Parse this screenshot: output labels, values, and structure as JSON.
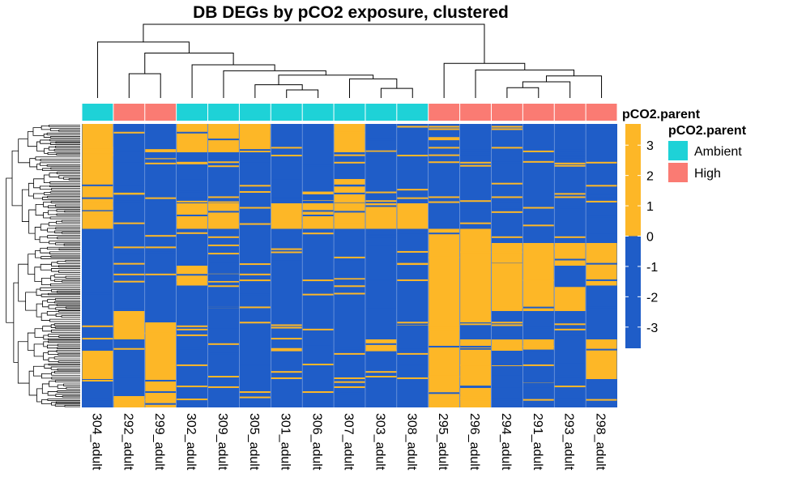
{
  "chart_data": {
    "type": "heatmap",
    "title": "DB DEGs by pCO2 exposure, clustered",
    "columns": [
      "304_adult",
      "292_adult",
      "299_adult",
      "302_adult",
      "309_adult",
      "305_adult",
      "301_adult",
      "306_adult",
      "307_adult",
      "303_adult",
      "308_adult",
      "295_adult",
      "296_adult",
      "294_adult",
      "291_adult",
      "293_adult",
      "298_adult"
    ],
    "annotation": {
      "name": "pCO2.parent",
      "values": [
        "Ambient",
        "High",
        "High",
        "Ambient",
        "Ambient",
        "Ambient",
        "Ambient",
        "Ambient",
        "Ambient",
        "Ambient",
        "Ambient",
        "High",
        "High",
        "High",
        "High",
        "High",
        "High"
      ],
      "legend": [
        {
          "label": "Ambient",
          "color": "#1ed2d7"
        },
        {
          "label": "High",
          "color": "#fa7b73"
        }
      ]
    },
    "color_scale": {
      "title": "",
      "low_color": "#1f5dc8",
      "high_color": "#fdb727",
      "break": 0,
      "range": [
        -3.7,
        3.7
      ],
      "ticks": [
        3,
        2,
        1,
        0,
        -1,
        -2,
        -3
      ]
    },
    "column_dendrogram": {
      "merges": [
        [
          -14,
          -15
        ],
        [
          -16,
          1
        ],
        [
          -17,
          2
        ],
        [
          -13,
          3
        ],
        [
          -12,
          4
        ],
        [
          -10,
          -11
        ],
        [
          -7,
          -8
        ],
        [
          -6,
          7
        ],
        [
          -9,
          6
        ],
        [
          8,
          9
        ],
        [
          -5,
          10
        ],
        [
          -4,
          11
        ],
        [
          -2,
          -3
        ],
        [
          12,
          13
        ],
        [
          -1,
          14
        ],
        [
          15,
          5
        ]
      ],
      "heights": [
        0.14,
        0.22,
        0.3,
        0.38,
        0.47,
        0.13,
        0.11,
        0.18,
        0.26,
        0.31,
        0.37,
        0.45,
        0.33,
        0.61,
        0.76,
        1.0
      ]
    },
    "value_bands": [
      {
        "from": 0.0,
        "to": 0.1,
        "high": [
          1,
          0,
          0,
          1,
          1,
          1,
          0,
          0,
          1,
          0,
          0,
          0,
          0,
          0,
          0,
          0,
          0
        ]
      },
      {
        "from": 0.1,
        "to": 0.2,
        "high": [
          1,
          0,
          0,
          0,
          0,
          0,
          0,
          0,
          0,
          0,
          0,
          0,
          0,
          0,
          0,
          0,
          0
        ]
      },
      {
        "from": 0.2,
        "to": 0.28,
        "high": [
          1,
          0,
          0,
          0,
          0,
          0,
          0,
          0,
          1,
          0,
          0,
          0,
          0,
          0,
          0,
          0,
          0
        ]
      },
      {
        "from": 0.28,
        "to": 0.37,
        "high": [
          1,
          0,
          0,
          1,
          1,
          0,
          1,
          1,
          1,
          1,
          1,
          0,
          0,
          0,
          0,
          0,
          0
        ]
      },
      {
        "from": 0.37,
        "to": 0.42,
        "high": [
          0,
          0,
          0,
          0,
          0,
          0,
          0,
          0,
          0,
          0,
          0,
          1,
          1,
          0,
          0,
          0,
          0
        ]
      },
      {
        "from": 0.42,
        "to": 0.5,
        "high": [
          0,
          0,
          0,
          0,
          0,
          0,
          0,
          0,
          0,
          0,
          0,
          1,
          1,
          1,
          1,
          1,
          1
        ]
      },
      {
        "from": 0.5,
        "to": 0.57,
        "high": [
          0,
          0,
          0,
          1,
          0,
          0,
          0,
          0,
          0,
          0,
          0,
          1,
          1,
          1,
          1,
          0,
          1
        ]
      },
      {
        "from": 0.57,
        "to": 0.66,
        "high": [
          0,
          0,
          0,
          0,
          0,
          0,
          0,
          0,
          0,
          0,
          0,
          1,
          1,
          1,
          1,
          1,
          0
        ]
      },
      {
        "from": 0.66,
        "to": 0.7,
        "high": [
          0,
          1,
          0,
          0,
          0,
          0,
          0,
          0,
          0,
          0,
          0,
          1,
          1,
          0,
          0,
          0,
          0
        ]
      },
      {
        "from": 0.7,
        "to": 0.76,
        "high": [
          0,
          1,
          1,
          0,
          0,
          0,
          0,
          0,
          0,
          0,
          0,
          1,
          0,
          0,
          0,
          0,
          0
        ]
      },
      {
        "from": 0.76,
        "to": 0.8,
        "high": [
          0,
          0,
          1,
          0,
          0,
          0,
          0,
          0,
          0,
          1,
          0,
          1,
          1,
          1,
          1,
          0,
          1
        ]
      },
      {
        "from": 0.8,
        "to": 0.9,
        "high": [
          1,
          0,
          1,
          0,
          0,
          0,
          0,
          0,
          0,
          0,
          0,
          1,
          1,
          0,
          0,
          0,
          1
        ]
      },
      {
        "from": 0.9,
        "to": 0.96,
        "high": [
          0,
          0,
          1,
          0,
          0,
          0,
          0,
          0,
          0,
          0,
          0,
          1,
          1,
          0,
          0,
          0,
          0
        ]
      },
      {
        "from": 0.96,
        "to": 1.0,
        "high": [
          0,
          1,
          1,
          0,
          0,
          0,
          0,
          0,
          0,
          0,
          0,
          1,
          1,
          0,
          0,
          0,
          0
        ]
      }
    ]
  }
}
